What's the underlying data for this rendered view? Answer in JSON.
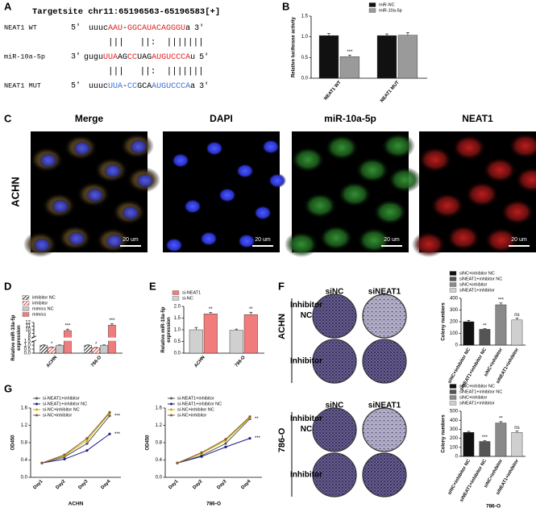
{
  "panel_labels": [
    "A",
    "B",
    "C",
    "D",
    "E",
    "F",
    "G"
  ],
  "panel_a": {
    "title": "Targetsite chr11:65196563-65196583[+]",
    "rows": [
      {
        "label": "NEAT1 WT",
        "left": "5'",
        "right": "3'",
        "segments": [
          {
            "text": "uuuc",
            "color": "#000000"
          },
          {
            "text": "AAU",
            "color": "#e02020"
          },
          {
            "text": "-",
            "color": "#000000"
          },
          {
            "text": "GGCAUACAGGGU",
            "color": "#e02020"
          },
          {
            "text": "a",
            "color": "#000000"
          }
        ]
      },
      {
        "label": "miR-10a-5p",
        "left": "3'",
        "right": "5'",
        "segments": [
          {
            "text": "gugu",
            "color": "#000000"
          },
          {
            "text": "UUA",
            "color": "#e02020"
          },
          {
            "text": "AG",
            "color": "#000000"
          },
          {
            "text": "CC",
            "color": "#e02020"
          },
          {
            "text": "UAG",
            "color": "#000000"
          },
          {
            "text": "AUGUCCCA",
            "color": "#e02020"
          },
          {
            "text": "u",
            "color": "#000000"
          }
        ]
      },
      {
        "label": "NEAT1 MUT",
        "left": "5'",
        "right": "3'",
        "segments": [
          {
            "text": "uuuc",
            "color": "#000000"
          },
          {
            "text": "UUA",
            "color": "#3a6fd8"
          },
          {
            "text": "-",
            "color": "#000000"
          },
          {
            "text": "CC",
            "color": "#3a6fd8"
          },
          {
            "text": "GCA",
            "color": "#000000"
          },
          {
            "text": "AUGUCCCA",
            "color": "#3a6fd8"
          },
          {
            "text": "a",
            "color": "#000000"
          }
        ]
      }
    ],
    "pairs": [
      "|||   ||:  |||||||",
      "|||   ||:  |||||||"
    ]
  },
  "panel_c": {
    "titles": [
      "Merge",
      "DAPI",
      "miR-10a-5p",
      "NEAT1"
    ],
    "row_label": "ACHN",
    "scale_bar": "20 um"
  },
  "panel_f": {
    "columns": [
      "siNC",
      "siNEAT1"
    ],
    "row_labels": [
      [
        "Inhibitor",
        "NC"
      ],
      [
        "Inhibitor"
      ]
    ],
    "groups": [
      "ACHN",
      "786-O"
    ]
  },
  "chart_data": [
    {
      "type": "bar",
      "ylabel": "Relative luciferase activity",
      "categories": [
        "NEAT1 WT",
        "NEAT1 MUT"
      ],
      "series": [
        {
          "name": "miR-NC",
          "color": "#111111",
          "values": [
            1.03,
            1.03
          ],
          "errors": [
            0.05,
            0.04
          ]
        },
        {
          "name": "miR-10a-5p",
          "color": "#9a9a9a",
          "values": [
            0.52,
            1.04
          ],
          "errors": [
            0.04,
            0.06
          ],
          "annotations": [
            "***",
            null
          ]
        }
      ],
      "ylim": [
        0,
        1.5
      ],
      "yticks": [
        {
          "value": 0,
          "label": "0.0"
        },
        {
          "value": 0.5,
          "label": "0.5"
        },
        {
          "value": 1,
          "label": "1.0"
        },
        {
          "value": 1.5,
          "label": "1.5"
        }
      ],
      "legend": "upper right"
    },
    {
      "type": "bar",
      "ylabel": [
        "Relative miR-10a-5p",
        "expression"
      ],
      "categories": [
        "ACHN",
        "786-O"
      ],
      "series": [
        {
          "name": "inhibitor NC",
          "color": "#222222",
          "hatch": true,
          "values": [
            1.0,
            1.0
          ],
          "errors": [
            0.03,
            0.03
          ]
        },
        {
          "name": "inhibitor",
          "color": "#e0403a",
          "hatch": true,
          "values": [
            0.72,
            0.68
          ],
          "errors": [
            0.04,
            0.04
          ],
          "annotations": [
            "*",
            "*"
          ]
        },
        {
          "name": "mimics NC",
          "color": "#c8c8c8",
          "values": [
            1.0,
            1.0
          ],
          "errors": [
            0.03,
            0.03
          ]
        },
        {
          "name": "mimics",
          "color": "#f07c7c",
          "values": [
            9.8,
            11.3
          ],
          "errors": [
            0.4,
            0.35
          ],
          "annotations": [
            "***",
            "***"
          ]
        }
      ],
      "ylim": [
        0,
        12
      ],
      "axis_break": [
        1.5,
        8
      ],
      "yticks": [
        {
          "value": 0,
          "label": "0.0"
        },
        {
          "value": 0.5,
          "label": "0.5"
        },
        {
          "value": 1,
          "label": "1.0"
        },
        {
          "value": 1.5,
          "label": "1.5"
        },
        8,
        9,
        10,
        11,
        12
      ],
      "legend": "top"
    },
    {
      "type": "bar",
      "ylabel": [
        "Relative miR-10a-5p",
        "expression"
      ],
      "categories": [
        "ACHN",
        "786-O"
      ],
      "series": [
        {
          "name": "si-NC",
          "color": "#d0d0d0",
          "values": [
            1.0,
            0.98
          ],
          "errors": [
            0.1,
            0.05
          ]
        },
        {
          "name": "si-NEAT1",
          "color": "#f07c7c",
          "values": [
            1.68,
            1.65
          ],
          "errors": [
            0.06,
            0.1
          ],
          "annotations": [
            "**",
            "**"
          ]
        }
      ],
      "ylim": [
        0,
        2
      ],
      "yticks": [
        {
          "value": 0,
          "label": "0.0"
        },
        {
          "value": 0.5,
          "label": "0.5"
        },
        {
          "value": 1,
          "label": "1.0"
        },
        {
          "value": 1.5,
          "label": "1.5"
        },
        {
          "value": 2,
          "label": "2.0"
        }
      ],
      "legend": "top"
    },
    {
      "type": "bar",
      "ylabel": "Colony numbers",
      "categories": [
        "siNC+inhibitor NC",
        "siNEAT1+inhibitor NC",
        "siNC+inhibitor",
        "siNEAT1+inhibitor"
      ],
      "values": [
        200,
        135,
        345,
        215
      ],
      "errors": [
        12,
        5,
        15,
        15
      ],
      "annotations": [
        null,
        "**",
        "***",
        "ns"
      ],
      "colors": [
        "#111111",
        "#555555",
        "#8a8a8a",
        "#cfcfcf"
      ],
      "ylim": [
        0,
        400
      ],
      "yticks": [
        0,
        100,
        200,
        300,
        400
      ],
      "legend": "top"
    },
    {
      "type": "bar",
      "ylabel": "Colony numbers",
      "xlabel": "786-O",
      "categories": [
        "siNC+inhibitor NC",
        "siNEAT1+inhibitor NC",
        "siNC+inhibitor",
        "siNEAT1+inhibitor"
      ],
      "values": [
        265,
        165,
        370,
        265
      ],
      "errors": [
        12,
        8,
        15,
        15
      ],
      "annotations": [
        null,
        "***",
        "**",
        "ns"
      ],
      "colors": [
        "#111111",
        "#555555",
        "#8a8a8a",
        "#cfcfcf"
      ],
      "ylim": [
        0,
        500
      ],
      "yticks": [
        0,
        100,
        200,
        300,
        400,
        500
      ],
      "legend": "top"
    },
    {
      "type": "line",
      "ylabel": "OD450",
      "xlabel": "ACHN",
      "categories": [
        "Day1",
        "Day2",
        "Day3",
        "Day4"
      ],
      "series": [
        {
          "name": "si-NEAT1+inhibitor",
          "color": "#555555",
          "values": [
            0.33,
            0.47,
            0.78,
            1.42
          ],
          "end_label": "***"
        },
        {
          "name": "si-NEAT1+inhibitor NC",
          "color": "#1a1a8c",
          "values": [
            0.33,
            0.42,
            0.62,
            1.0
          ],
          "end_label": "***"
        },
        {
          "name": "si-NC+inhibitor NC",
          "color": "#c8b400",
          "values": [
            0.33,
            0.5,
            0.85,
            1.48
          ]
        },
        {
          "name": "si-NC+inhibitor",
          "color": "#8b5a2b",
          "values": [
            0.33,
            0.52,
            0.9,
            1.5
          ]
        }
      ],
      "ylim": [
        0,
        1.6
      ],
      "yticks": [
        {
          "value": 0,
          "label": "0.0"
        },
        {
          "value": 0.4,
          "label": "0.4"
        },
        {
          "value": 0.8,
          "label": "0.8"
        },
        {
          "value": 1.2,
          "label": "1.2"
        },
        {
          "value": 1.6,
          "label": "1.6"
        }
      ],
      "legend": "upper left"
    },
    {
      "type": "line",
      "ylabel": "OD450",
      "xlabel": "786-O",
      "categories": [
        "Day1",
        "Day2",
        "Day3",
        "Day4"
      ],
      "series": [
        {
          "name": "si-NEAT1+inhibitor",
          "color": "#555555",
          "values": [
            0.33,
            0.5,
            0.78,
            1.35
          ],
          "end_label": "**"
        },
        {
          "name": "si-NEAT1+inhibitor NC",
          "color": "#1a1a8c",
          "values": [
            0.33,
            0.48,
            0.7,
            0.9
          ],
          "end_label": "***"
        },
        {
          "name": "si-NC+inhibitor NC",
          "color": "#c8b400",
          "values": [
            0.33,
            0.55,
            0.85,
            1.38
          ]
        },
        {
          "name": "si-NC+inhibitor",
          "color": "#8b5a2b",
          "values": [
            0.33,
            0.57,
            0.88,
            1.4
          ]
        }
      ],
      "ylim": [
        0,
        1.6
      ],
      "yticks": [
        {
          "value": 0,
          "label": "0.0"
        },
        {
          "value": 0.4,
          "label": "0.4"
        },
        {
          "value": 0.8,
          "label": "0.8"
        },
        {
          "value": 1.2,
          "label": "1.2"
        },
        {
          "value": 1.6,
          "label": "1.6"
        }
      ],
      "legend": "upper left"
    }
  ]
}
